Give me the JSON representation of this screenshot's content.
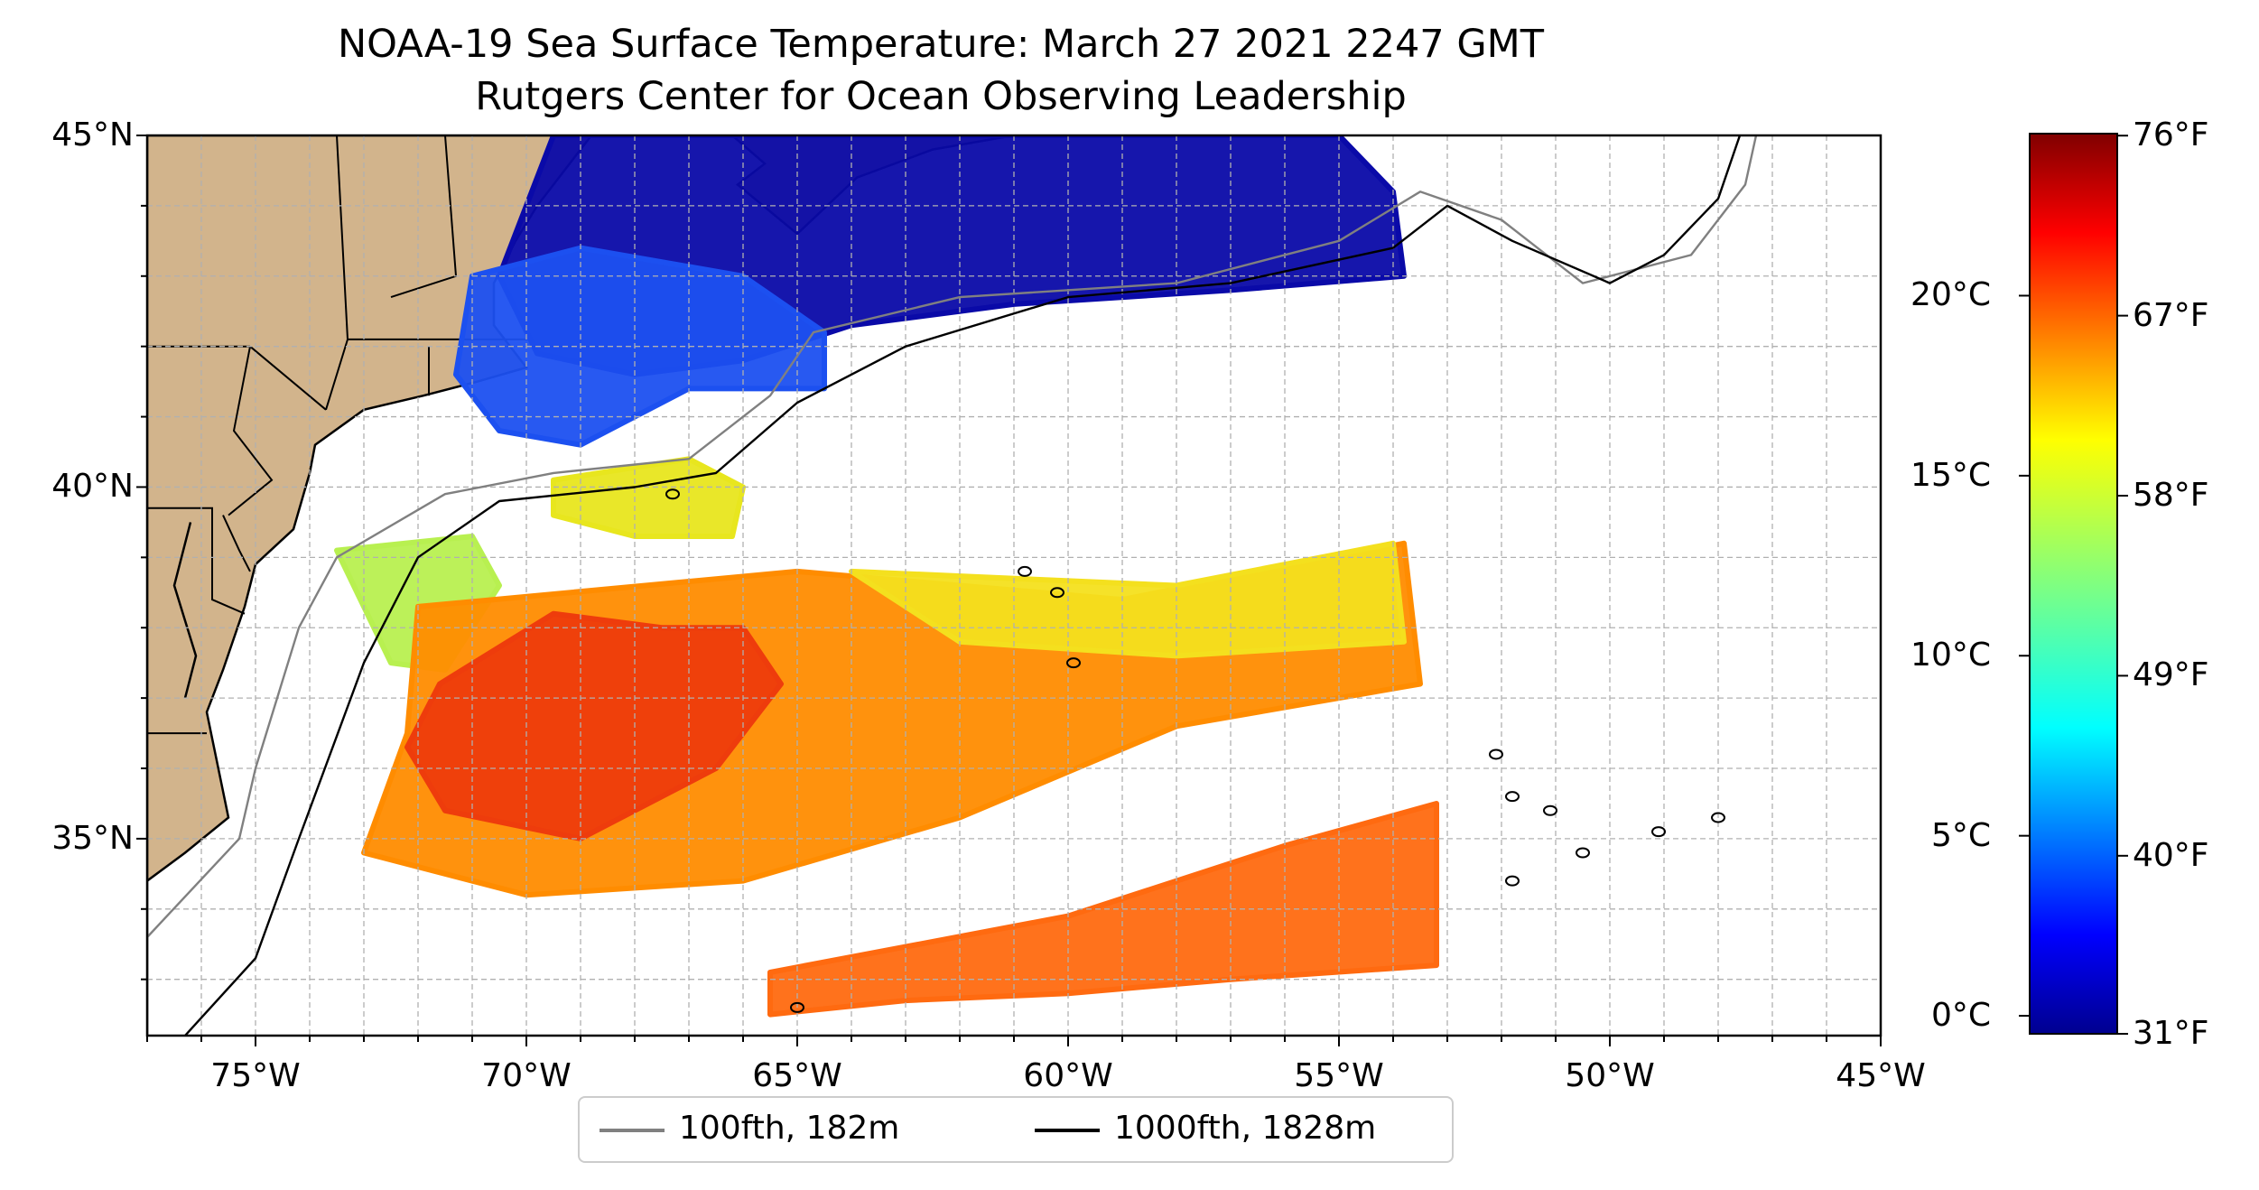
{
  "title": "NOAA-19 Sea Surface Temperature: March 27 2021 2247 GMT",
  "subtitle": "Rutgers Center for Ocean Observing Leadership",
  "map": {
    "lon_range": [
      -77,
      -45
    ],
    "lat_range": [
      32.2,
      45
    ],
    "x_ticks": [
      {
        "lon": -75,
        "label": "75°W"
      },
      {
        "lon": -70,
        "label": "70°W"
      },
      {
        "lon": -65,
        "label": "65°W"
      },
      {
        "lon": -60,
        "label": "60°W"
      },
      {
        "lon": -55,
        "label": "55°W"
      },
      {
        "lon": -50,
        "label": "50°W"
      },
      {
        "lon": -45,
        "label": "45°W"
      }
    ],
    "y_ticks": [
      {
        "lat": 45,
        "label": "45°N"
      },
      {
        "lat": 40,
        "label": "40°N"
      },
      {
        "lat": 35,
        "label": "35°N"
      }
    ],
    "gridlines": "dashed, every 1°",
    "land_color": "#d2b48c",
    "sst_regions": [
      {
        "name": "gulf-of-maine-cold",
        "temp_c": 1,
        "color": "#0a0aa8",
        "poly": [
          [
            -69.5,
            45
          ],
          [
            -55,
            45
          ],
          [
            -54,
            44.2
          ],
          [
            -53.8,
            43
          ],
          [
            -57,
            42.8
          ],
          [
            -61,
            42.6
          ],
          [
            -64,
            42.3
          ],
          [
            -66,
            41.8
          ],
          [
            -68,
            41.6
          ],
          [
            -69.8,
            41.9
          ],
          [
            -70.5,
            43
          ]
        ]
      },
      {
        "name": "shelf-cold-blue",
        "temp_c": 4,
        "color": "#1c50f0",
        "poly": [
          [
            -71,
            43
          ],
          [
            -69,
            43.4
          ],
          [
            -66,
            43
          ],
          [
            -64.5,
            42.2
          ],
          [
            -64.5,
            41.4
          ],
          [
            -67,
            41.4
          ],
          [
            -69,
            40.6
          ],
          [
            -70.5,
            40.8
          ],
          [
            -71.3,
            41.6
          ]
        ]
      },
      {
        "name": "shelf-edge-yellow",
        "temp_c": 14,
        "color": "#e8e61e",
        "poly": [
          [
            -69.5,
            40.1
          ],
          [
            -67,
            40.4
          ],
          [
            -66,
            40
          ],
          [
            -66.2,
            39.3
          ],
          [
            -68,
            39.3
          ],
          [
            -69.5,
            39.6
          ]
        ]
      },
      {
        "name": "slope-yellow-green",
        "temp_c": 12,
        "color": "#b8f050",
        "poly": [
          [
            -73.5,
            39.1
          ],
          [
            -71,
            39.3
          ],
          [
            -70.5,
            38.6
          ],
          [
            -71.5,
            37.4
          ],
          [
            -72.5,
            37.5
          ]
        ]
      },
      {
        "name": "gulf-stream-orange",
        "temp_c": 19,
        "color": "#ff8c00",
        "poly": [
          [
            -72,
            38.3
          ],
          [
            -65,
            38.8
          ],
          [
            -59,
            38.4
          ],
          [
            -53.8,
            39.2
          ],
          [
            -53.5,
            37.2
          ],
          [
            -58,
            36.6
          ],
          [
            -62,
            35.3
          ],
          [
            -66,
            34.4
          ],
          [
            -70,
            34.2
          ],
          [
            -73,
            34.8
          ],
          [
            -72.2,
            36.5
          ]
        ]
      },
      {
        "name": "gulf-stream-core-red",
        "temp_c": 22,
        "color": "#ee3c0c",
        "poly": [
          [
            -71.6,
            37.2
          ],
          [
            -69.5,
            38.2
          ],
          [
            -67.5,
            38
          ],
          [
            -66,
            38
          ],
          [
            -65.3,
            37.2
          ],
          [
            -66.5,
            36
          ],
          [
            -69,
            35
          ],
          [
            -71.5,
            35.4
          ],
          [
            -72.2,
            36.3
          ]
        ]
      },
      {
        "name": "northern-yellow-band",
        "temp_c": 15,
        "color": "#f4e01e",
        "poly": [
          [
            -64,
            38.8
          ],
          [
            -58,
            38.6
          ],
          [
            -54,
            39.2
          ],
          [
            -53.8,
            37.8
          ],
          [
            -58,
            37.6
          ],
          [
            -62,
            37.8
          ]
        ]
      },
      {
        "name": "southern-orange-band",
        "temp_c": 20,
        "color": "#ff6a10",
        "poly": [
          [
            -65.5,
            33.1
          ],
          [
            -60,
            33.9
          ],
          [
            -56,
            34.9
          ],
          [
            -53.2,
            35.5
          ],
          [
            -53.2,
            33.2
          ],
          [
            -57,
            33
          ],
          [
            -60,
            32.8
          ],
          [
            -63,
            32.7
          ],
          [
            -65.5,
            32.5
          ]
        ]
      }
    ],
    "isobaths": [
      {
        "name": "100fth",
        "color": "#808080",
        "path": [
          [
            -77,
            33.6
          ],
          [
            -75.3,
            35
          ],
          [
            -75,
            36
          ],
          [
            -74.2,
            38
          ],
          [
            -73.5,
            39
          ],
          [
            -71.5,
            39.9
          ],
          [
            -69.5,
            40.2
          ],
          [
            -67,
            40.4
          ],
          [
            -65.5,
            41.3
          ],
          [
            -64.7,
            42.2
          ],
          [
            -62,
            42.7
          ],
          [
            -58,
            42.9
          ],
          [
            -55,
            43.5
          ],
          [
            -53.5,
            44.2
          ],
          [
            -52,
            43.8
          ],
          [
            -50.5,
            42.9
          ],
          [
            -48.5,
            43.3
          ],
          [
            -47.5,
            44.3
          ],
          [
            -47.3,
            45
          ]
        ]
      },
      {
        "name": "1000fth",
        "color": "#000000",
        "path": [
          [
            -76.3,
            32.2
          ],
          [
            -75,
            33.3
          ],
          [
            -74.2,
            35
          ],
          [
            -73,
            37.5
          ],
          [
            -72,
            39
          ],
          [
            -70.5,
            39.8
          ],
          [
            -68,
            40
          ],
          [
            -66.5,
            40.2
          ],
          [
            -65,
            41.2
          ],
          [
            -63,
            42
          ],
          [
            -60,
            42.7
          ],
          [
            -57,
            42.9
          ],
          [
            -54,
            43.4
          ],
          [
            -53,
            44
          ],
          [
            -51.8,
            43.5
          ],
          [
            -50,
            42.9
          ],
          [
            -49,
            43.3
          ],
          [
            -48,
            44.1
          ],
          [
            -47.6,
            45
          ]
        ]
      }
    ],
    "seamounts": [
      {
        "lon": -67.3,
        "lat": 39.9
      },
      {
        "lon": -60.8,
        "lat": 38.8
      },
      {
        "lon": -60.2,
        "lat": 38.5
      },
      {
        "lon": -59.9,
        "lat": 37.5
      },
      {
        "lon": -52.1,
        "lat": 36.2
      },
      {
        "lon": -51.8,
        "lat": 35.6
      },
      {
        "lon": -51.1,
        "lat": 35.4
      },
      {
        "lon": -49.1,
        "lat": 35.1
      },
      {
        "lon": -48,
        "lat": 35.3
      },
      {
        "lon": -50.5,
        "lat": 34.8
      },
      {
        "lon": -51.8,
        "lat": 34.4
      },
      {
        "lon": -65,
        "lat": 32.6
      }
    ]
  },
  "colorbar": {
    "colormap": "jet",
    "range_c": [
      -0.5,
      24.5
    ],
    "celsius_ticks": [
      {
        "value": 0,
        "label": "0°C"
      },
      {
        "value": 5,
        "label": "5°C"
      },
      {
        "value": 10,
        "label": "10°C"
      },
      {
        "value": 15,
        "label": "15°C"
      },
      {
        "value": 20,
        "label": "20°C"
      }
    ],
    "fahrenheit_ticks": [
      {
        "value": 31,
        "label": "31°F"
      },
      {
        "value": 40,
        "label": "40°F"
      },
      {
        "value": 49,
        "label": "49°F"
      },
      {
        "value": 58,
        "label": "58°F"
      },
      {
        "value": 67,
        "label": "67°F"
      },
      {
        "value": 76,
        "label": "76°F"
      }
    ]
  },
  "legend": [
    {
      "label": "100fth, 182m",
      "color": "#808080"
    },
    {
      "label": "1000fth, 1828m",
      "color": "#000000"
    }
  ]
}
